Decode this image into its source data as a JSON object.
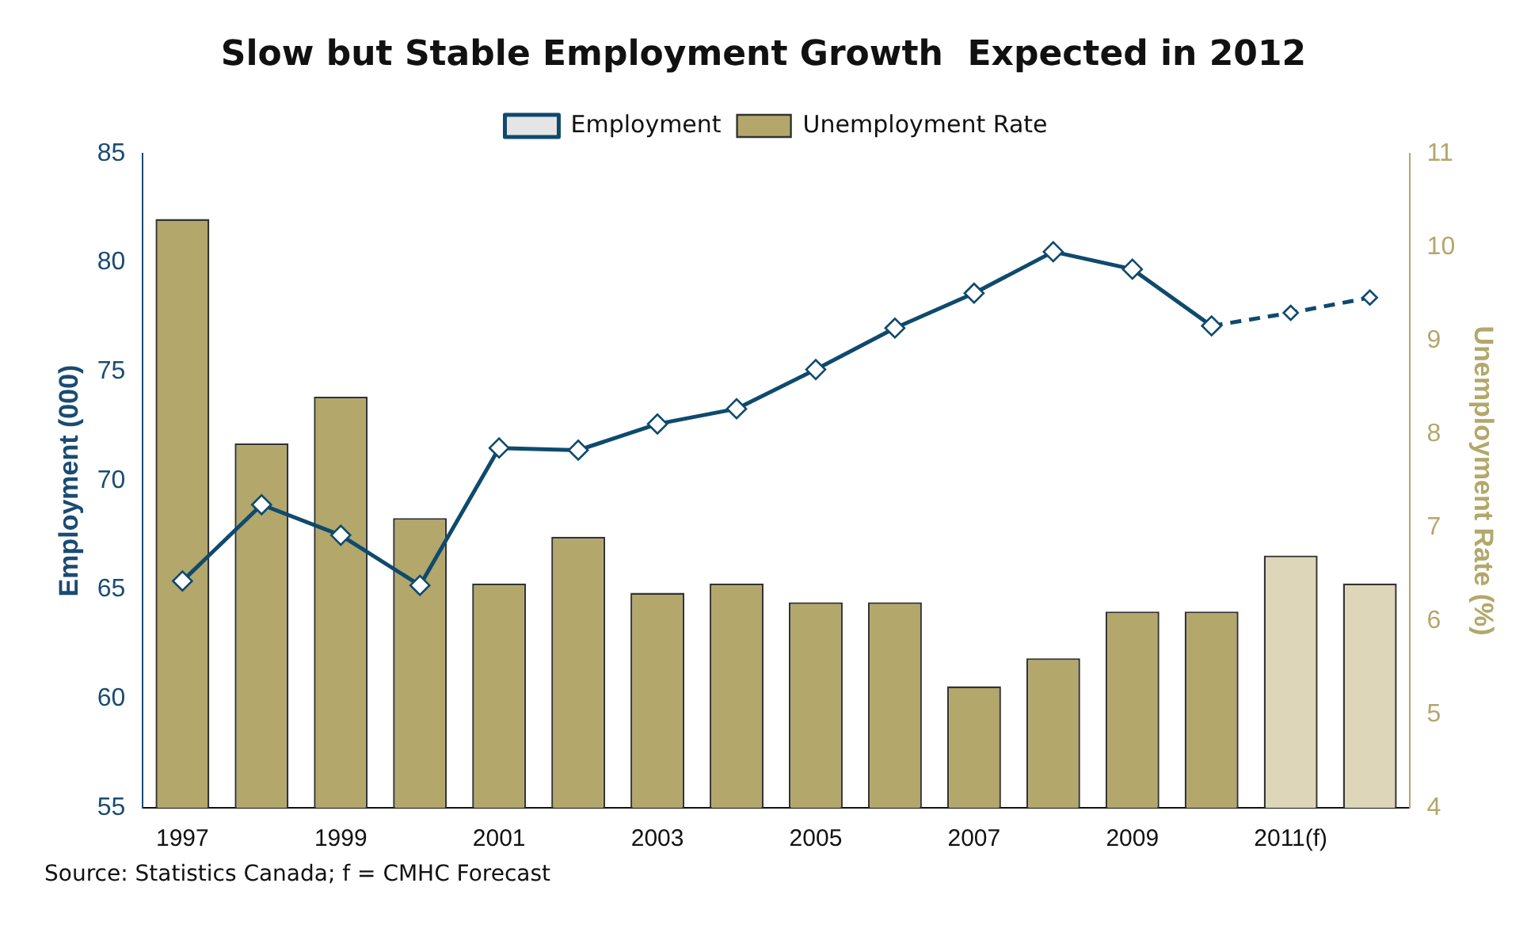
{
  "chart_data": {
    "type": "bar",
    "title": "Slow but Stable Employment Growth  Expected in 2012",
    "ylabel": "Employment (000)",
    "y2label": "Unemployment Rate (%)",
    "categories": [
      "1997",
      null,
      "1999",
      null,
      "2001",
      null,
      "2003",
      null,
      "2005",
      null,
      "2007",
      null,
      "2009",
      null,
      "2011(f)",
      null
    ],
    "series": [
      {
        "name": "Unemployment Rate",
        "axis": "y2",
        "colors": [
          "#b3a76b",
          "#b3a76b",
          "#b3a76b",
          "#b3a76b",
          "#b3a76b",
          "#b3a76b",
          "#b3a76b",
          "#b3a76b",
          "#b3a76b",
          "#b3a76b",
          "#b3a76b",
          "#b3a76b",
          "#b3a76b",
          "#b3a76b",
          "#ddd6b8",
          "#ddd6b8"
        ],
        "values": [
          10.3,
          7.9,
          8.4,
          7.1,
          6.4,
          6.9,
          6.3,
          6.4,
          6.2,
          6.2,
          5.3,
          5.6,
          6.1,
          6.1,
          6.7,
          6.4
        ]
      },
      {
        "name": "Employment",
        "type": "line",
        "color": "#0f4a6e",
        "line_style": "solid",
        "marker": "diamond",
        "values": [
          65.4,
          68.9,
          67.5,
          65.2,
          71.5,
          71.4,
          72.6,
          73.3,
          75.1,
          77.0,
          78.6,
          80.5,
          79.7,
          77.1,
          null,
          null
        ]
      },
      {
        "type": "line",
        "color": "#0f4a6e",
        "line_style": "dashed",
        "marker": "diamond",
        "values": [
          null,
          null,
          null,
          null,
          null,
          null,
          null,
          null,
          null,
          null,
          null,
          null,
          null,
          77.1,
          77.7,
          78.4
        ]
      }
    ],
    "ylim": [
      55,
      85
    ],
    "yticks": [
      55,
      60,
      65,
      70,
      75,
      80,
      85
    ],
    "y2lim": [
      4,
      11
    ],
    "y2ticks": [
      4,
      5,
      6,
      7,
      8,
      9,
      10,
      11
    ],
    "grid": false,
    "legend": "top",
    "annotations": [
      "Source: Statistics Canada; f = CMHC Forecast"
    ]
  }
}
